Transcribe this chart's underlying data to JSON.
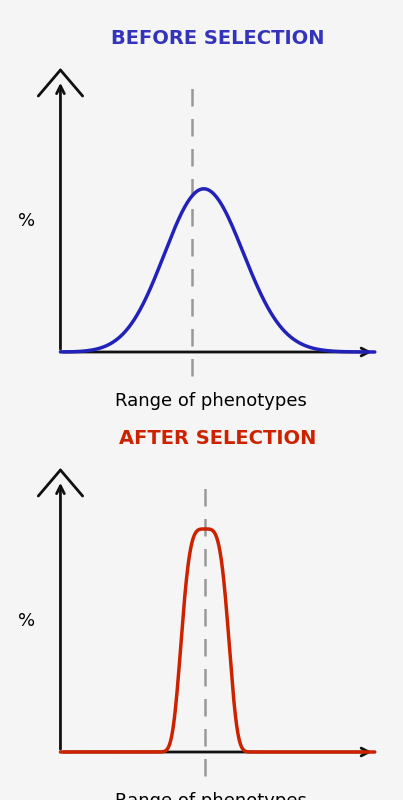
{
  "bg_color": "#f5f5f5",
  "title_before": "BEFORE SELECTION",
  "title_after": "AFTER SELECTION",
  "title_before_color": "#3333bb",
  "title_after_color": "#cc2200",
  "curve_before_color": "#2222bb",
  "curve_after_color": "#cc2200",
  "axis_color": "#111111",
  "dashed_color": "#999999",
  "xlabel": "Range of phenotypes",
  "ylabel": "%",
  "curve_lw": 2.5,
  "axis_lw": 2.0,
  "before_mean": 0.42,
  "before_std": 0.13,
  "after_mean": 0.46,
  "after_std": 0.07,
  "xlabel_fontsize": 13,
  "title_fontsize": 14,
  "ylabel_fontsize": 13
}
